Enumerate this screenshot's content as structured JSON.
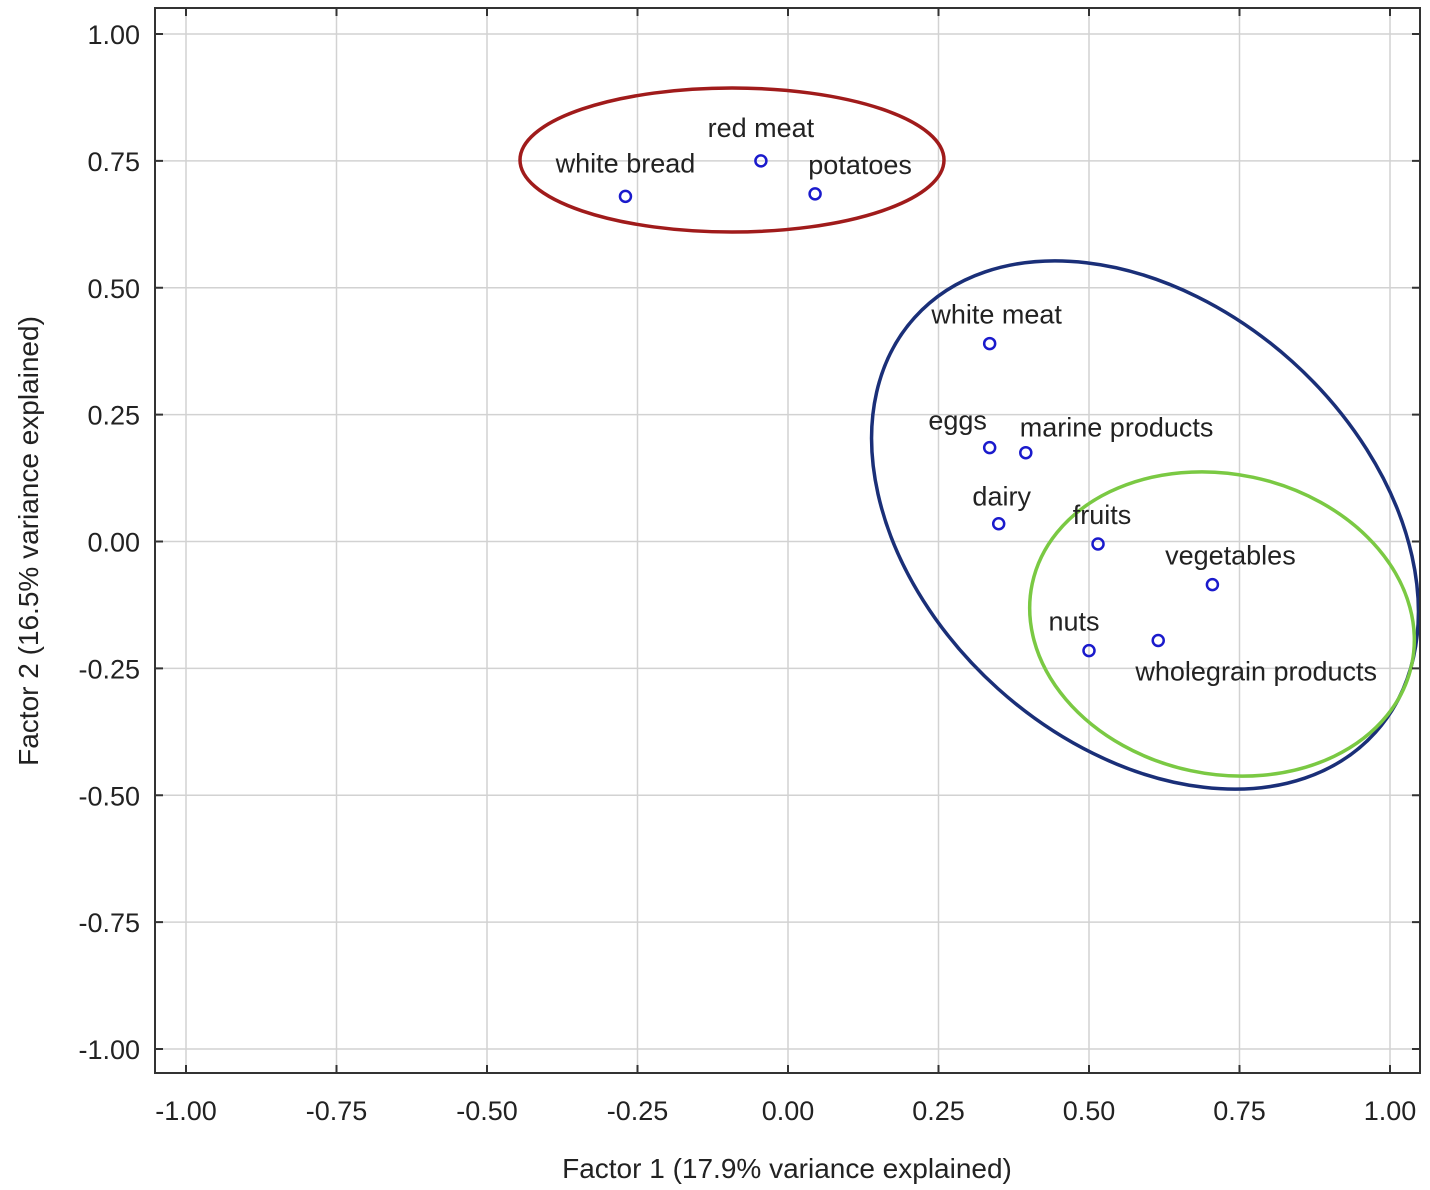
{
  "chart_data": {
    "type": "scatter",
    "title": "",
    "xlabel": "Factor 1 (17.9% variance explained)",
    "ylabel": "Factor 2 (16.5% variance explained)",
    "xlim": [
      -1.0,
      1.0
    ],
    "ylim": [
      -1.0,
      1.0
    ],
    "xticks": [
      "-1.00",
      "-0.75",
      "-0.50",
      "-0.25",
      "0.00",
      "0.25",
      "0.50",
      "0.75",
      "1.00"
    ],
    "yticks": [
      "1.00",
      "0.75",
      "0.50",
      "0.25",
      "0.00",
      "-0.25",
      "-0.50",
      "-0.75",
      "-1.00"
    ],
    "grid": true,
    "points": [
      {
        "label": "red meat",
        "x": -0.045,
        "y": 0.75
      },
      {
        "label": "white bread",
        "x": -0.27,
        "y": 0.68
      },
      {
        "label": "potatoes",
        "x": 0.045,
        "y": 0.685
      },
      {
        "label": "white meat",
        "x": 0.335,
        "y": 0.39
      },
      {
        "label": "eggs",
        "x": 0.335,
        "y": 0.185
      },
      {
        "label": "marine products",
        "x": 0.395,
        "y": 0.175
      },
      {
        "label": "dairy",
        "x": 0.35,
        "y": 0.035
      },
      {
        "label": "fruits",
        "x": 0.515,
        "y": -0.005
      },
      {
        "label": "vegetables",
        "x": 0.705,
        "y": -0.085
      },
      {
        "label": "nuts",
        "x": 0.5,
        "y": -0.215
      },
      {
        "label": "wholegrain products",
        "x": 0.615,
        "y": -0.195
      }
    ],
    "clusters": [
      {
        "color": "#a01b1b",
        "members": [
          "red meat",
          "white bread",
          "potatoes"
        ]
      },
      {
        "color": "#1a2f78",
        "members": [
          "white meat",
          "eggs",
          "marine products",
          "dairy",
          "fruits",
          "vegetables",
          "nuts",
          "wholegrain products"
        ]
      },
      {
        "color": "#7ac943",
        "members": [
          "fruits",
          "vegetables",
          "nuts",
          "wholegrain products"
        ]
      }
    ],
    "colors": {
      "point": "#1a1acc",
      "grid": "#d2d2d2",
      "frame": "#333333"
    }
  }
}
